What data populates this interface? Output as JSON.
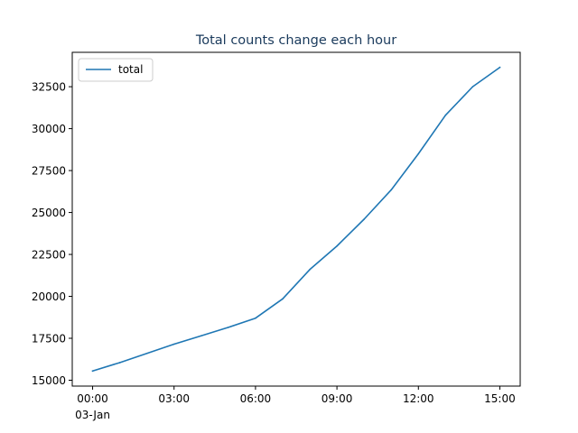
{
  "chart_data": {
    "type": "line",
    "title": "Total counts change each hour",
    "xlabel": "",
    "ylabel": "",
    "x": [
      "00:00",
      "01:00",
      "02:00",
      "03:00",
      "04:00",
      "05:00",
      "06:00",
      "07:00",
      "08:00",
      "09:00",
      "10:00",
      "11:00",
      "12:00",
      "13:00",
      "14:00",
      "15:00"
    ],
    "x_hours": [
      0,
      1,
      2,
      3,
      4,
      5,
      6,
      7,
      8,
      9,
      10,
      11,
      12,
      13,
      14,
      15
    ],
    "x_ticks": [
      {
        "hour": 0,
        "label": "00:00",
        "sublabel": "03-Jan"
      },
      {
        "hour": 3,
        "label": "03:00",
        "sublabel": ""
      },
      {
        "hour": 6,
        "label": "06:00",
        "sublabel": ""
      },
      {
        "hour": 9,
        "label": "09:00",
        "sublabel": ""
      },
      {
        "hour": 12,
        "label": "12:00",
        "sublabel": ""
      },
      {
        "hour": 15,
        "label": "15:00",
        "sublabel": ""
      }
    ],
    "xlim": [
      -0.75,
      15.75
    ],
    "ylim": [
      14650,
      34550
    ],
    "y_ticks": [
      15000,
      17500,
      20000,
      22500,
      25000,
      27500,
      30000,
      32500
    ],
    "series": [
      {
        "name": "total",
        "color": "#1f77b4",
        "values": [
          15550,
          16050,
          16600,
          17150,
          17650,
          18150,
          18700,
          19850,
          21600,
          23000,
          24600,
          26350,
          28500,
          30800,
          32500,
          33650
        ]
      }
    ],
    "legend": "top-left",
    "grid": false
  }
}
